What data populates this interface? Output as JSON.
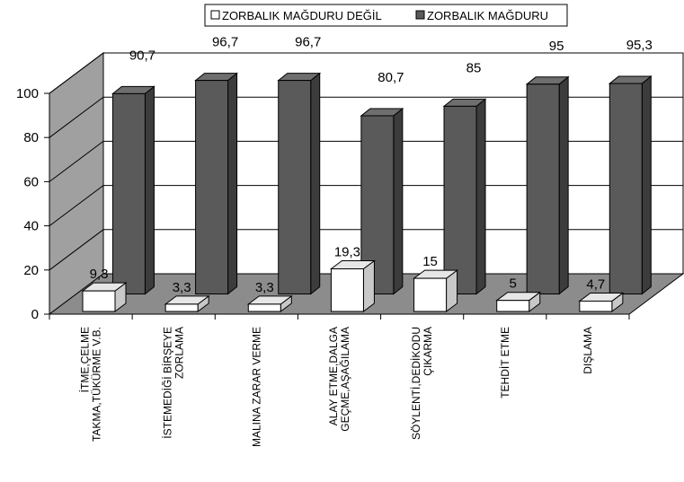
{
  "chart_data": {
    "type": "bar",
    "categories": [
      [
        "İTME,ÇELME",
        "TAKMA,TÜKÜRME  V.B."
      ],
      [
        "İSTEMEDİĞİ BİRŞEYE",
        "ZORLAMA"
      ],
      [
        "MALINA ZARAR VERME"
      ],
      [
        "ALAY ETME,DALGA",
        "GEÇME,AŞAĞILAMA"
      ],
      [
        "SÖYLENTİ,DEDİKODU",
        "ÇIKARMA"
      ],
      [
        "TEHDİT ETME"
      ],
      [
        "DIŞLAMA"
      ]
    ],
    "series": [
      {
        "name": "ZORBALIK MAĞDURU DEĞİL",
        "values": [
          9.3,
          3.3,
          3.3,
          19.3,
          15,
          5,
          4.7
        ],
        "labels": [
          "9,3",
          "3,3",
          "3,3",
          "19,3",
          "15",
          "5",
          "4,7"
        ],
        "color": "#ffffff"
      },
      {
        "name": "ZORBALIK MAĞDURU",
        "values": [
          90.7,
          96.7,
          96.7,
          80.7,
          85,
          95,
          95.3
        ],
        "labels": [
          "90,7",
          "96,7",
          "96,7",
          "80,7",
          "85",
          "95",
          "95,3"
        ],
        "color": "#595959"
      }
    ],
    "yticks": [
      "0",
      "20",
      "40",
      "60",
      "80",
      "100"
    ],
    "ylim": [
      0,
      100
    ],
    "grid": true,
    "legend_position": "top"
  }
}
